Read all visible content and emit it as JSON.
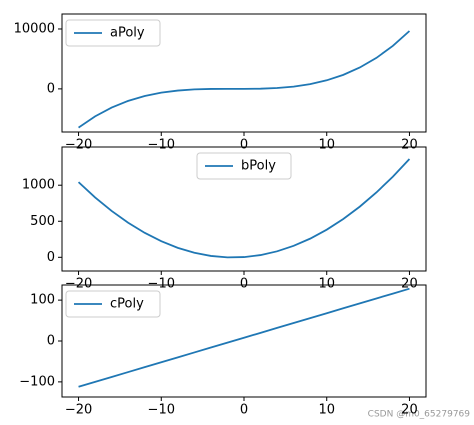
{
  "chart_data": [
    {
      "type": "line",
      "x": [
        -20,
        -18,
        -16,
        -14,
        -12,
        -10,
        -8,
        -6,
        -4,
        -2,
        0,
        2,
        4,
        6,
        8,
        10,
        12,
        14,
        16,
        18,
        20
      ],
      "series": [
        {
          "name": "aPoly",
          "color": "#1f77b4",
          "values": [
            -6460,
            -4590,
            -3120,
            -2002,
            -1188,
            -630,
            -280,
            -90,
            -12,
            2,
            0,
            30,
            140,
            378,
            792,
            1430,
            2340,
            3570,
            5168,
            7182,
            9660
          ]
        }
      ],
      "xlim": [
        -22,
        22
      ],
      "ylim": [
        -7200,
        12500
      ],
      "xticks": [
        {
          "value": -20,
          "label": "−20"
        },
        {
          "value": -10,
          "label": "−10"
        },
        0,
        10,
        20
      ],
      "yticks": [
        0,
        10000
      ],
      "legend": "upper left"
    },
    {
      "type": "line",
      "x": [
        -20,
        -18,
        -16,
        -14,
        -12,
        -10,
        -8,
        -6,
        -4,
        -2,
        0,
        2,
        4,
        6,
        8,
        10,
        12,
        14,
        16,
        18,
        20
      ],
      "series": [
        {
          "name": "bPoly",
          "color": "#1f77b4",
          "values": [
            1043,
            831,
            643,
            479,
            339,
            223,
            131,
            63,
            19,
            -1,
            3,
            31,
            83,
            159,
            259,
            383,
            531,
            703,
            899,
            1119,
            1363
          ]
        }
      ],
      "xlim": [
        -22,
        22
      ],
      "ylim": [
        -190,
        1530
      ],
      "xticks": [
        {
          "value": -20,
          "label": "−20"
        },
        {
          "value": -10,
          "label": "−10"
        },
        0,
        10,
        20
      ],
      "yticks": [
        0,
        500,
        1000
      ],
      "legend": "upper center"
    },
    {
      "type": "line",
      "x": [
        -20,
        -18,
        -16,
        -14,
        -12,
        -10,
        -8,
        -6,
        -4,
        -2,
        0,
        2,
        4,
        6,
        8,
        10,
        12,
        14,
        16,
        18,
        20
      ],
      "series": [
        {
          "name": "cPoly",
          "color": "#1f77b4",
          "values": [
            -112,
            -100,
            -88,
            -76,
            -64,
            -52,
            -40,
            -28,
            -16,
            -4,
            8,
            20,
            32,
            44,
            56,
            68,
            80,
            92,
            104,
            116,
            128
          ]
        }
      ],
      "xlim": [
        -22,
        22
      ],
      "ylim": [
        -137,
        137
      ],
      "xticks": [
        {
          "value": -20,
          "label": "−20"
        },
        {
          "value": -10,
          "label": "−10"
        },
        0,
        10,
        20
      ],
      "yticks": [
        {
          "value": -100,
          "label": "−100"
        },
        0,
        100
      ],
      "legend": "upper left"
    }
  ],
  "watermark": "CSDN @m0_65279769"
}
